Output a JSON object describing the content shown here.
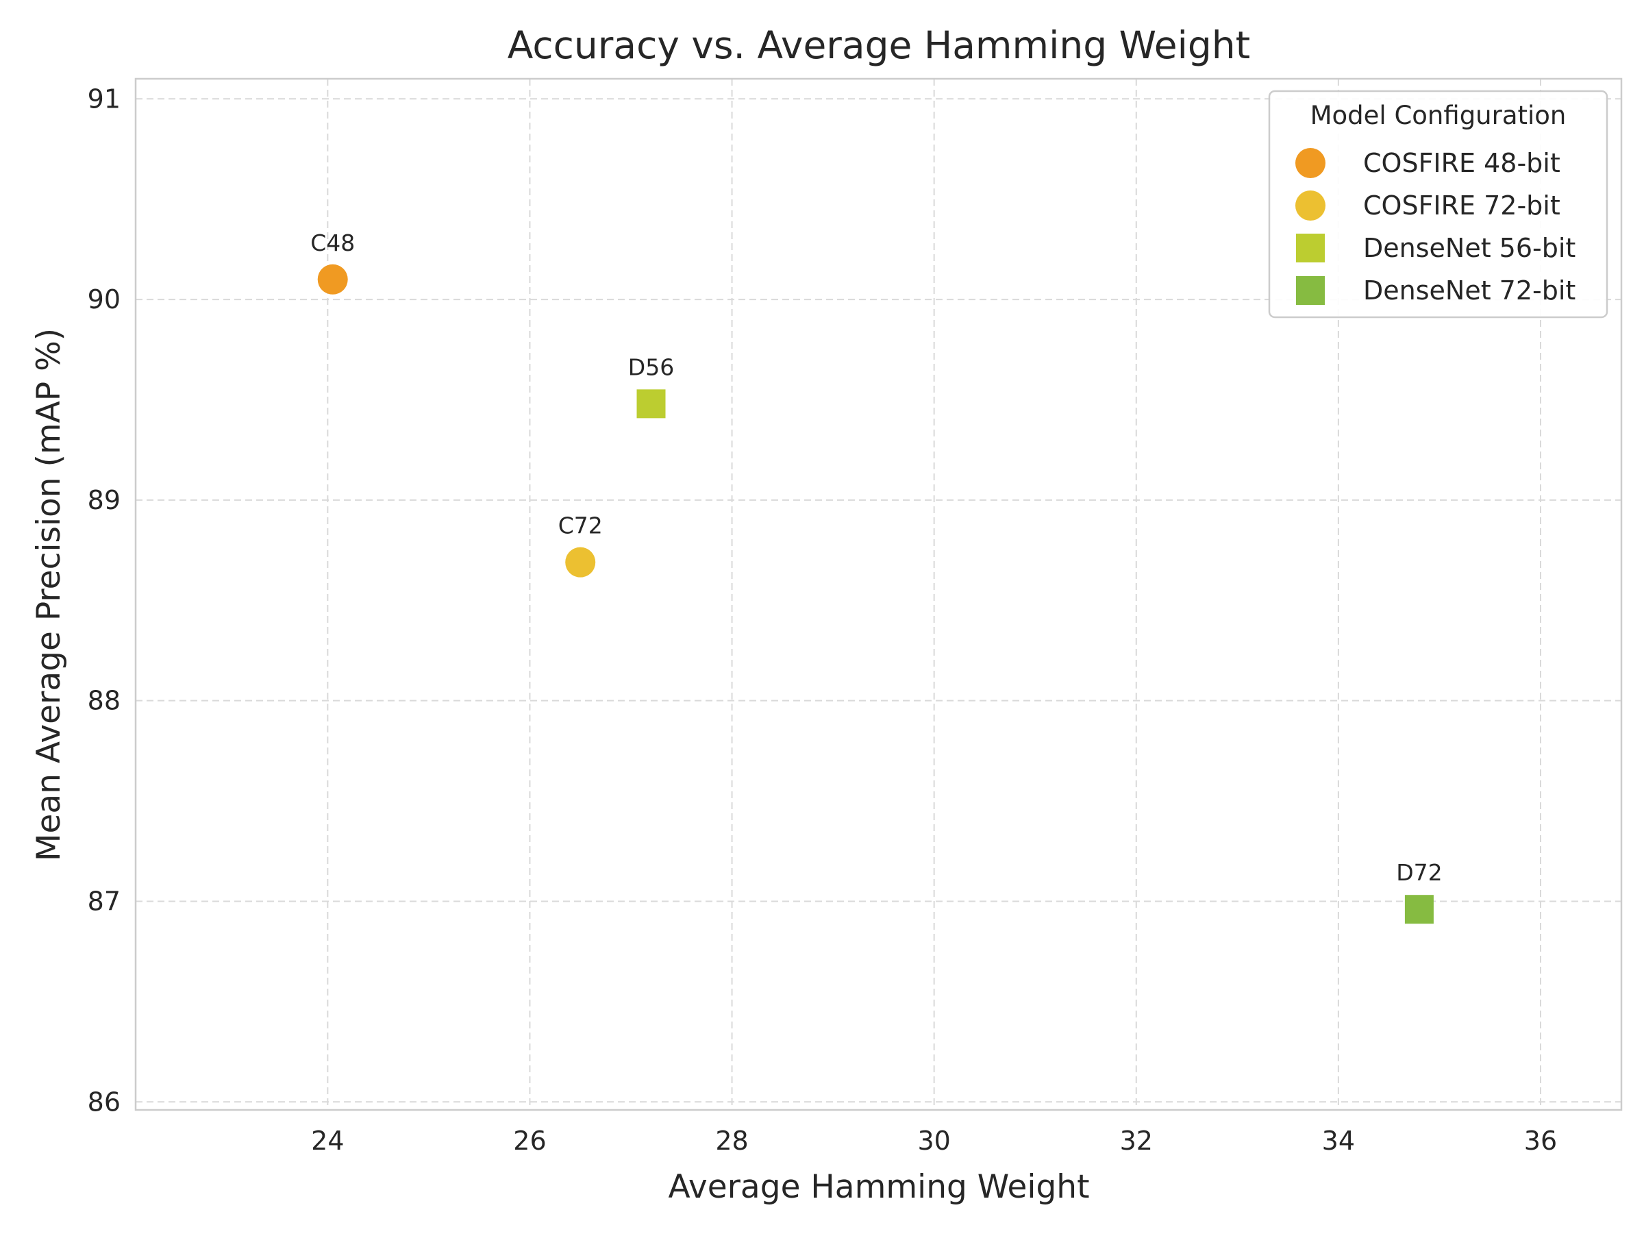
{
  "chart_data": {
    "type": "scatter",
    "title": "Accuracy vs. Average Hamming Weight",
    "xlabel": "Average Hamming Weight",
    "ylabel": "Mean Average Precision (mAP %)",
    "xlim": [
      22.1,
      36.8
    ],
    "ylim": [
      85.96,
      91.1
    ],
    "x_ticks": [
      24,
      26,
      28,
      30,
      32,
      34,
      36
    ],
    "y_ticks": [
      86,
      87,
      88,
      89,
      90,
      91
    ],
    "grid": true,
    "legend": {
      "title": "Model Configuration",
      "placement": "top-right"
    },
    "series": [
      {
        "name": "COSFIRE 48-bit",
        "label": "C48",
        "marker": "circle",
        "color": "#f09a22",
        "x": [
          24.05
        ],
        "y": [
          90.1
        ]
      },
      {
        "name": "COSFIRE 72-bit",
        "label": "C72",
        "marker": "circle",
        "color": "#ecc031",
        "x": [
          26.5
        ],
        "y": [
          88.69
        ]
      },
      {
        "name": "DenseNet 56-bit",
        "label": "D56",
        "marker": "square",
        "color": "#bccd30",
        "x": [
          27.2
        ],
        "y": [
          89.48
        ]
      },
      {
        "name": "DenseNet 72-bit",
        "label": "D72",
        "marker": "square",
        "color": "#86bb41",
        "x": [
          34.8
        ],
        "y": [
          86.96
        ]
      }
    ]
  }
}
